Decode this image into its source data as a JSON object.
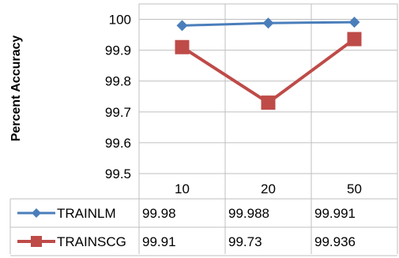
{
  "chart_data": {
    "type": "line",
    "title": "",
    "ylabel": "Percent Accuracy",
    "xlabel": "",
    "categories": [
      "10",
      "20",
      "50"
    ],
    "ylim": [
      99.5,
      100.05
    ],
    "yticks": [
      "99.5",
      "99.6",
      "99.7",
      "99.8",
      "99.9",
      "100"
    ],
    "grid": true,
    "legend_placement": "data-table",
    "series": [
      {
        "name": "TRAINLM",
        "values": [
          99.98,
          99.988,
          99.991
        ],
        "labels": [
          "99.98",
          "99.988",
          "99.991"
        ],
        "color": "#4A7EBB",
        "marker": "diamond"
      },
      {
        "name": "TRAINSCG",
        "values": [
          99.91,
          99.73,
          99.936
        ],
        "labels": [
          "99.91",
          "99.73",
          "99.936"
        ],
        "color": "#BE4B48",
        "marker": "square"
      }
    ]
  }
}
